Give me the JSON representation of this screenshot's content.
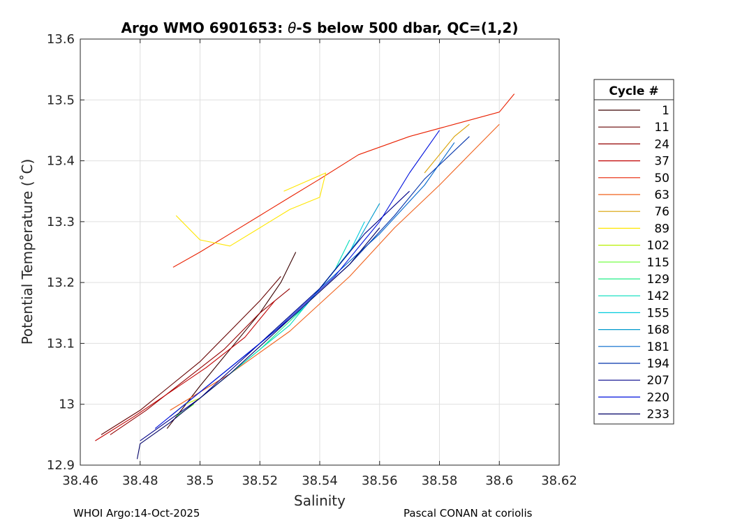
{
  "chart_data": {
    "type": "line",
    "title_prefix": "Argo WMO 6901653: ",
    "title_theta": "θ",
    "title_suffix": "-S below 500 dbar,  QC=(1,2)",
    "xlabel": "Salinity",
    "ylabel": "Potential Temperature (˚C)",
    "xlim": [
      38.46,
      38.62
    ],
    "ylim": [
      12.9,
      13.6
    ],
    "xticks": [
      38.46,
      38.48,
      38.5,
      38.52,
      38.54,
      38.56,
      38.58,
      38.6,
      38.62
    ],
    "xtick_labels": [
      "38.46",
      "38.48",
      "38.5",
      "38.52",
      "38.54",
      "38.56",
      "38.58",
      "38.6",
      "38.62"
    ],
    "yticks": [
      12.9,
      13.0,
      13.1,
      13.2,
      13.3,
      13.4,
      13.5,
      13.6
    ],
    "ytick_labels": [
      "12.9",
      "13",
      "13.1",
      "13.2",
      "13.3",
      "13.4",
      "13.5",
      "13.6"
    ],
    "grid": true,
    "legend": {
      "title": "Cycle #",
      "placement": "right",
      "entries": [
        {
          "label": "1",
          "color": "#3a0000"
        },
        {
          "label": "11",
          "color": "#650000"
        },
        {
          "label": "24",
          "color": "#940000"
        },
        {
          "label": "37",
          "color": "#c00000"
        },
        {
          "label": "50",
          "color": "#e92000"
        },
        {
          "label": "63",
          "color": "#f0601a"
        },
        {
          "label": "76",
          "color": "#d9a000"
        },
        {
          "label": "89",
          "color": "#ffe600"
        },
        {
          "label": "102",
          "color": "#b8f000"
        },
        {
          "label": "115",
          "color": "#66ff33"
        },
        {
          "label": "129",
          "color": "#22ee88"
        },
        {
          "label": "142",
          "color": "#00ddbb"
        },
        {
          "label": "155",
          "color": "#00ccdd"
        },
        {
          "label": "168",
          "color": "#0099cc"
        },
        {
          "label": "181",
          "color": "#0066cc"
        },
        {
          "label": "194",
          "color": "#0033aa"
        },
        {
          "label": "207",
          "color": "#000088"
        },
        {
          "label": "220",
          "color": "#0011dd"
        },
        {
          "label": "233",
          "color": "#000066"
        }
      ]
    },
    "series": [
      {
        "name": "1",
        "color": "#3a0000",
        "points": [
          [
            38.489,
            12.96
          ],
          [
            38.5,
            13.03
          ],
          [
            38.51,
            13.09
          ],
          [
            38.52,
            13.15
          ],
          [
            38.527,
            13.2
          ],
          [
            38.532,
            13.25
          ]
        ]
      },
      {
        "name": "11",
        "color": "#650000",
        "points": [
          [
            38.467,
            12.95
          ],
          [
            38.48,
            12.99
          ],
          [
            38.49,
            13.03
          ],
          [
            38.5,
            13.07
          ],
          [
            38.51,
            13.12
          ],
          [
            38.52,
            13.17
          ],
          [
            38.527,
            13.21
          ]
        ]
      },
      {
        "name": "24",
        "color": "#940000",
        "points": [
          [
            38.47,
            12.95
          ],
          [
            38.482,
            12.99
          ],
          [
            38.495,
            13.04
          ],
          [
            38.508,
            13.09
          ],
          [
            38.52,
            13.15
          ],
          [
            38.53,
            13.19
          ]
        ]
      },
      {
        "name": "37",
        "color": "#c00000",
        "points": [
          [
            38.465,
            12.94
          ],
          [
            38.478,
            12.98
          ],
          [
            38.49,
            13.02
          ],
          [
            38.502,
            13.06
          ],
          [
            38.515,
            13.11
          ],
          [
            38.525,
            13.17
          ]
        ]
      },
      {
        "name": "50",
        "color": "#e92000",
        "points": [
          [
            38.491,
            13.225
          ],
          [
            38.5,
            13.25
          ],
          [
            38.51,
            13.28
          ],
          [
            38.52,
            13.31
          ],
          [
            38.53,
            13.34
          ],
          [
            38.54,
            13.37
          ],
          [
            38.553,
            13.41
          ],
          [
            38.57,
            13.44
          ],
          [
            38.585,
            13.46
          ],
          [
            38.6,
            13.48
          ],
          [
            38.605,
            13.51
          ]
        ]
      },
      {
        "name": "63",
        "color": "#f0601a",
        "points": [
          [
            38.49,
            12.99
          ],
          [
            38.51,
            13.05
          ],
          [
            38.53,
            13.12
          ],
          [
            38.55,
            13.21
          ],
          [
            38.565,
            13.29
          ],
          [
            38.58,
            13.36
          ],
          [
            38.59,
            13.41
          ],
          [
            38.6,
            13.46
          ]
        ]
      },
      {
        "name": "76",
        "color": "#d9a000",
        "points": [
          [
            38.575,
            13.38
          ],
          [
            38.58,
            13.41
          ],
          [
            38.585,
            13.44
          ],
          [
            38.59,
            13.46
          ]
        ]
      },
      {
        "name": "89",
        "color": "#ffe600",
        "points": [
          [
            38.492,
            13.31
          ],
          [
            38.5,
            13.27
          ],
          [
            38.51,
            13.26
          ],
          [
            38.52,
            13.29
          ],
          [
            38.53,
            13.32
          ],
          [
            38.54,
            13.34
          ],
          [
            38.542,
            13.38
          ],
          [
            38.528,
            13.35
          ]
        ]
      },
      {
        "name": "102",
        "color": "#b8f000",
        "points": [
          [
            38.49,
            12.98
          ],
          [
            38.495,
            13.0
          ],
          [
            38.5,
            13.01
          ]
        ]
      },
      {
        "name": "115",
        "color": "#66ff33",
        "points": [
          [
            38.492,
            12.98
          ],
          [
            38.498,
            13.0
          ]
        ]
      },
      {
        "name": "129",
        "color": "#22ee88",
        "points": [
          [
            38.5,
            13.01
          ],
          [
            38.52,
            13.09
          ],
          [
            38.535,
            13.16
          ]
        ]
      },
      {
        "name": "142",
        "color": "#00ddbb",
        "points": [
          [
            38.51,
            13.05
          ],
          [
            38.53,
            13.13
          ],
          [
            38.545,
            13.22
          ],
          [
            38.55,
            13.27
          ]
        ]
      },
      {
        "name": "155",
        "color": "#00ccdd",
        "points": [
          [
            38.515,
            13.08
          ],
          [
            38.535,
            13.16
          ],
          [
            38.55,
            13.25
          ],
          [
            38.555,
            13.3
          ]
        ]
      },
      {
        "name": "168",
        "color": "#0099cc",
        "points": [
          [
            38.52,
            13.1
          ],
          [
            38.54,
            13.19
          ],
          [
            38.553,
            13.27
          ],
          [
            38.56,
            13.33
          ]
        ]
      },
      {
        "name": "181",
        "color": "#0066cc",
        "points": [
          [
            38.5,
            13.02
          ],
          [
            38.52,
            13.1
          ],
          [
            38.54,
            13.19
          ],
          [
            38.56,
            13.28
          ],
          [
            38.575,
            13.36
          ],
          [
            38.585,
            13.43
          ]
        ]
      },
      {
        "name": "194",
        "color": "#0033aa",
        "points": [
          [
            38.49,
            12.98
          ],
          [
            38.51,
            13.06
          ],
          [
            38.53,
            13.14
          ],
          [
            38.55,
            13.23
          ],
          [
            38.565,
            13.31
          ],
          [
            38.575,
            13.37
          ],
          [
            38.59,
            13.44
          ]
        ]
      },
      {
        "name": "207",
        "color": "#000088",
        "points": [
          [
            38.48,
            12.94
          ],
          [
            38.5,
            13.01
          ],
          [
            38.52,
            13.1
          ],
          [
            38.54,
            13.19
          ],
          [
            38.555,
            13.28
          ],
          [
            38.57,
            13.35
          ]
        ]
      },
      {
        "name": "220",
        "color": "#0011dd",
        "points": [
          [
            38.485,
            12.96
          ],
          [
            38.505,
            13.04
          ],
          [
            38.525,
            13.12
          ],
          [
            38.545,
            13.21
          ],
          [
            38.56,
            13.3
          ],
          [
            38.57,
            13.38
          ],
          [
            38.58,
            13.45
          ]
        ]
      },
      {
        "name": "233",
        "color": "#000066",
        "points": [
          [
            38.479,
            12.91
          ],
          [
            38.48,
            12.935
          ],
          [
            38.49,
            12.97
          ],
          [
            38.51,
            13.05
          ],
          [
            38.53,
            13.14
          ],
          [
            38.55,
            13.23
          ],
          [
            38.56,
            13.29
          ]
        ]
      }
    ]
  },
  "footer": {
    "left": "WHOI Argo:14-Oct-2025",
    "right": "Pascal CONAN at coriolis"
  }
}
